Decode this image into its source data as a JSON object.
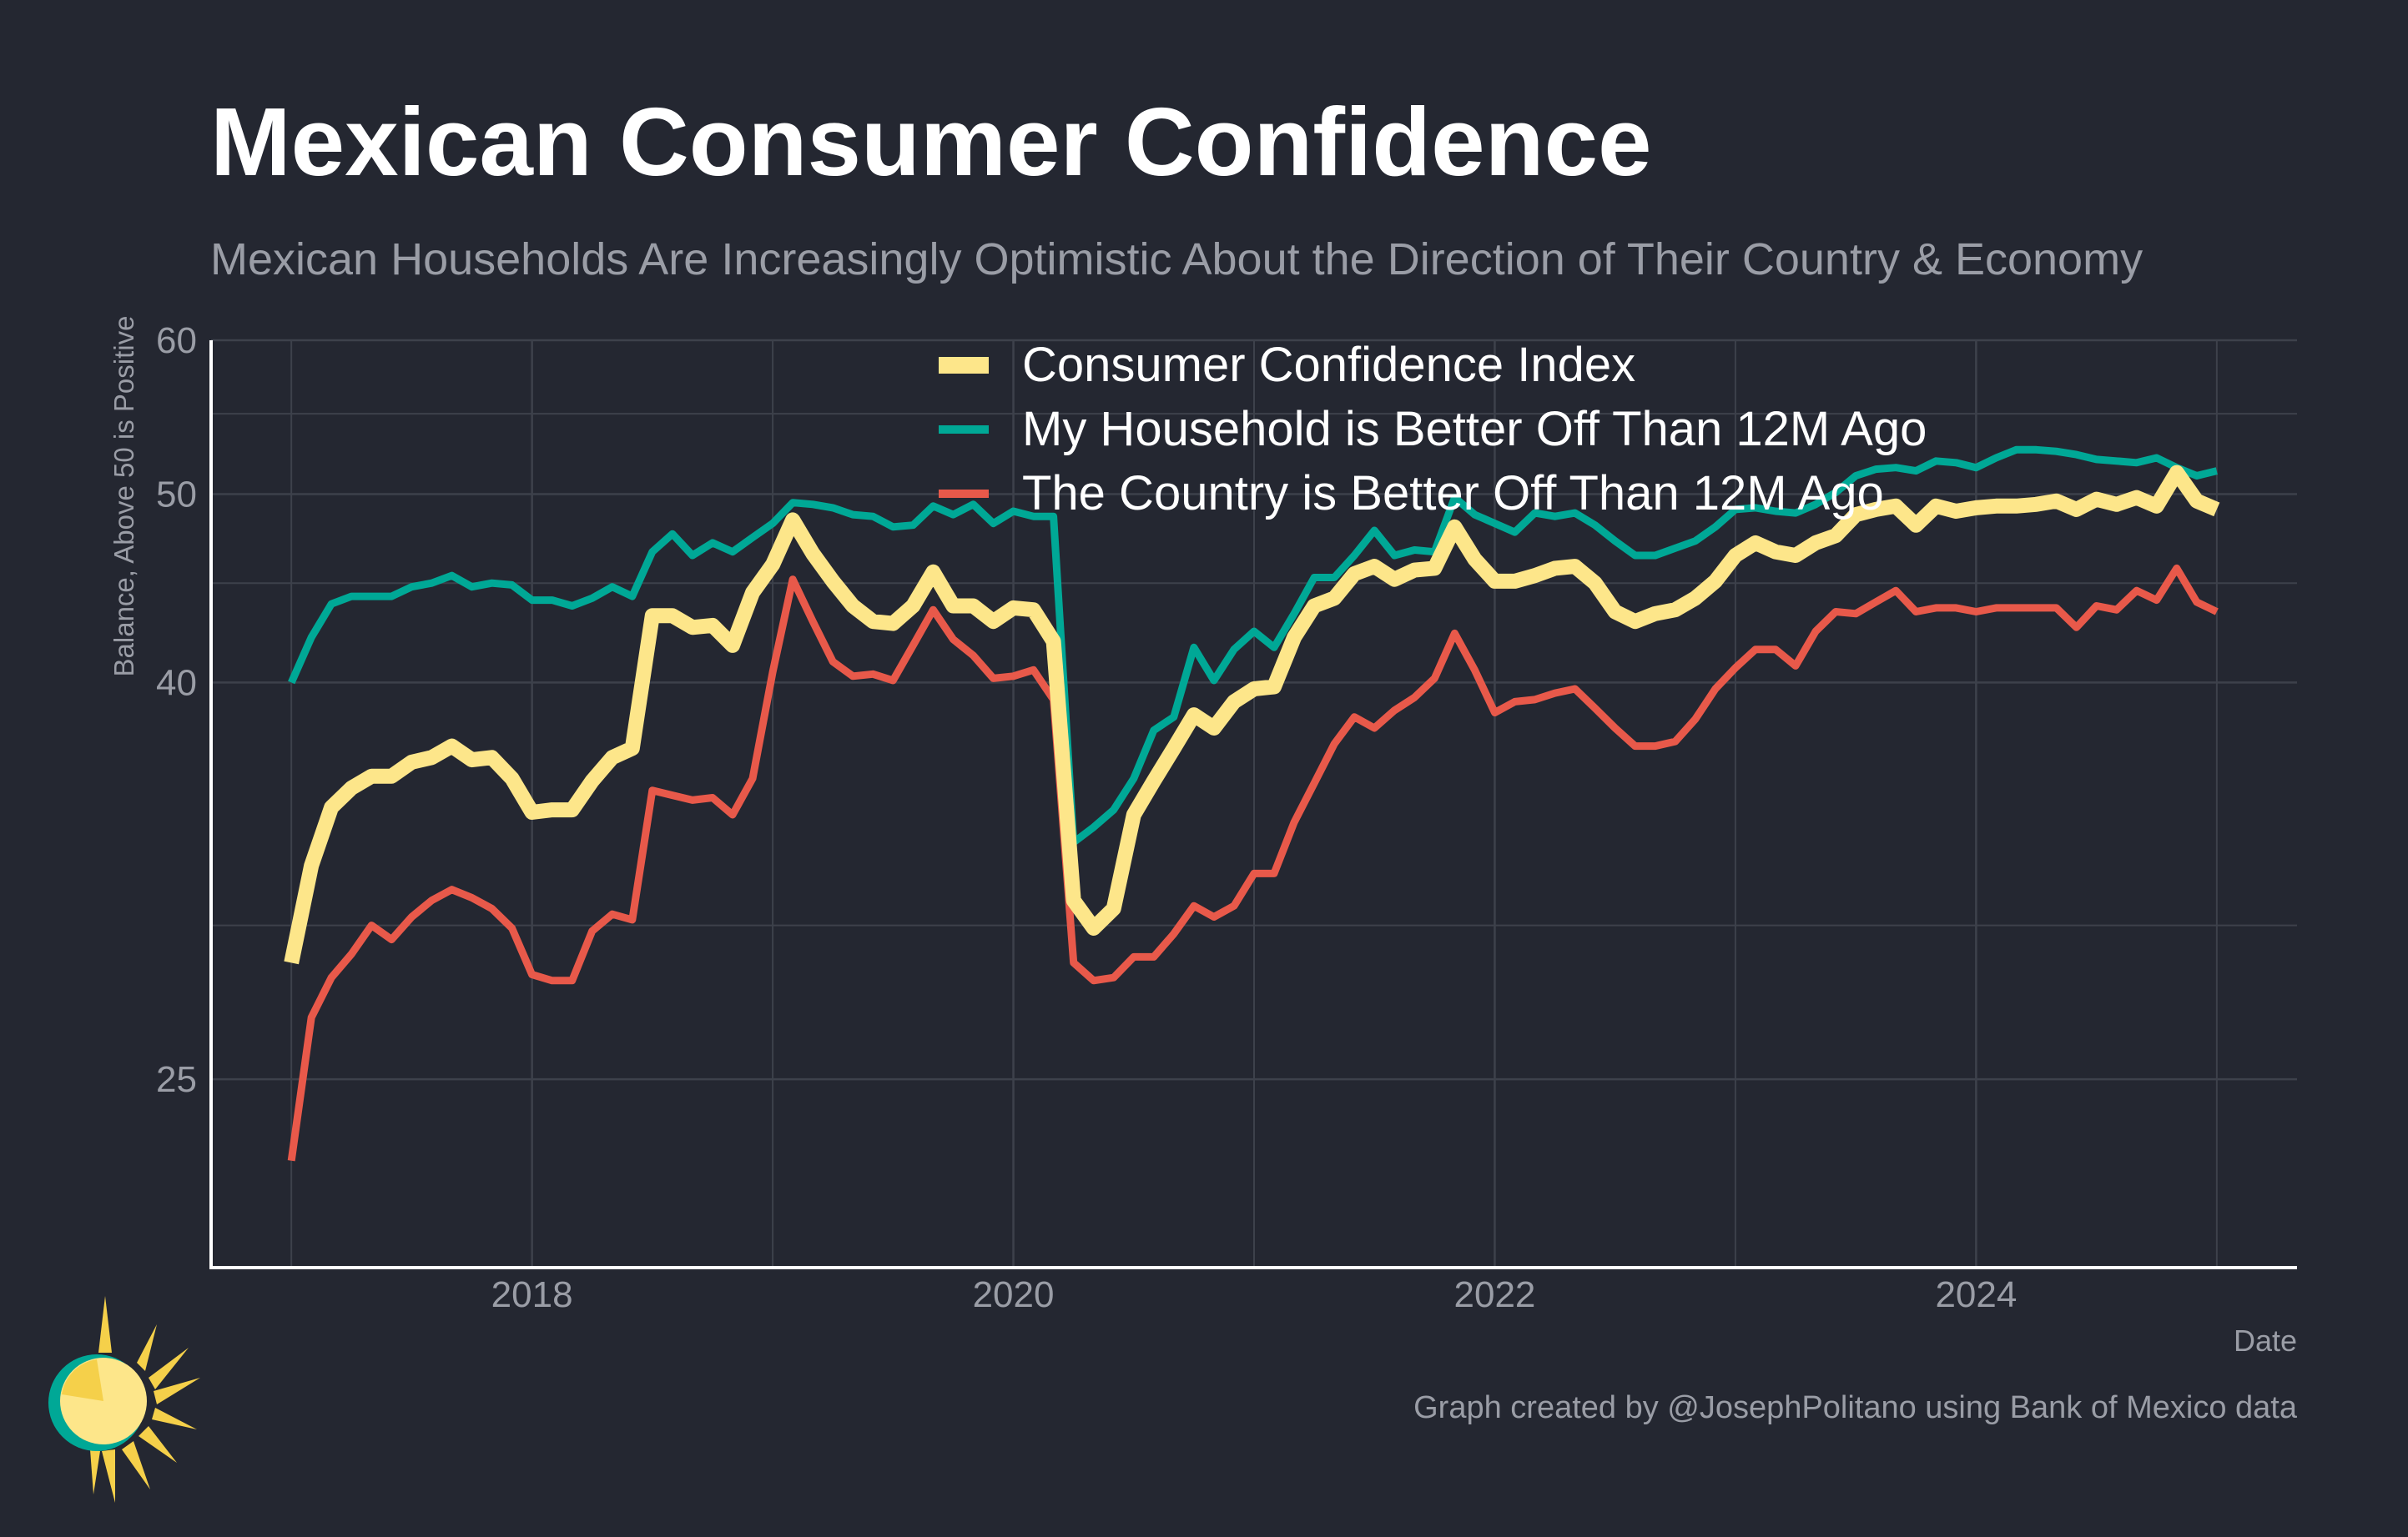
{
  "header": {
    "title": "Mexican Consumer Confidence",
    "subtitle": "Mexican Households Are Increasingly Optimistic About the Direction of Their Country & Economy"
  },
  "footer": {
    "credit": "Graph created by @JosephPolitano using Bank of Mexico data"
  },
  "logo": {
    "icon": "sun-logo-icon"
  },
  "colors": {
    "background": "#242731",
    "title": "#ffffff",
    "muted": "#9a9da6",
    "grid": "#3d414b",
    "axis": "#ffffff",
    "cci": "#fde68a",
    "household": "#00a896",
    "country": "#e8594a"
  },
  "chart_data": {
    "type": "line",
    "xlabel": "Date",
    "ylabel": "Balance, Above 50 is Positive",
    "ylim": [
      20,
      60
    ],
    "xlim": [
      "2016-09",
      "2025-05"
    ],
    "y_ticks": [
      "25",
      "40",
      "50",
      "60"
    ],
    "x_ticks": [
      "2018",
      "2020",
      "2022",
      "2024"
    ],
    "grid": true,
    "legend_position": "top-center",
    "x": [
      "2017-01",
      "2017-02",
      "2017-03",
      "2017-04",
      "2017-05",
      "2017-06",
      "2017-07",
      "2017-08",
      "2017-09",
      "2017-10",
      "2017-11",
      "2017-12",
      "2018-01",
      "2018-02",
      "2018-03",
      "2018-04",
      "2018-05",
      "2018-06",
      "2018-07",
      "2018-08",
      "2018-09",
      "2018-10",
      "2018-11",
      "2018-12",
      "2019-01",
      "2019-02",
      "2019-03",
      "2019-04",
      "2019-05",
      "2019-06",
      "2019-07",
      "2019-08",
      "2019-09",
      "2019-10",
      "2019-11",
      "2019-12",
      "2020-01",
      "2020-02",
      "2020-03",
      "2020-04",
      "2020-05",
      "2020-06",
      "2020-07",
      "2020-08",
      "2020-09",
      "2020-10",
      "2020-11",
      "2020-12",
      "2021-01",
      "2021-02",
      "2021-03",
      "2021-04",
      "2021-05",
      "2021-06",
      "2021-07",
      "2021-08",
      "2021-09",
      "2021-10",
      "2021-11",
      "2021-12",
      "2022-01",
      "2022-02",
      "2022-03",
      "2022-04",
      "2022-05",
      "2022-06",
      "2022-07",
      "2022-08",
      "2022-09",
      "2022-10",
      "2022-11",
      "2022-12",
      "2023-01",
      "2023-02",
      "2023-03",
      "2023-04",
      "2023-05",
      "2023-06",
      "2023-07",
      "2023-08",
      "2023-09",
      "2023-10",
      "2023-11",
      "2023-12",
      "2024-01",
      "2024-02",
      "2024-03",
      "2024-04",
      "2024-05",
      "2024-06",
      "2024-07",
      "2024-08",
      "2024-09",
      "2024-10",
      "2024-11",
      "2024-12",
      "2025-01"
    ],
    "series": [
      {
        "name": "Consumer Confidence Index",
        "color": "#fde68a",
        "values": [
          28.7,
          32.2,
          34.5,
          35.3,
          35.8,
          35.8,
          36.4,
          36.6,
          37.1,
          36.5,
          36.6,
          35.7,
          34.3,
          34.4,
          34.4,
          35.6,
          36.6,
          37.0,
          43.3,
          43.3,
          42.7,
          42.8,
          41.8,
          44.5,
          46.0,
          48.5,
          46.6,
          45.1,
          43.8,
          43.0,
          42.9,
          43.8,
          45.6,
          43.8,
          43.8,
          43.0,
          43.7,
          43.6,
          42.0,
          30.9,
          29.9,
          30.6,
          34.2,
          35.6,
          37.0,
          38.5,
          37.9,
          39.1,
          39.7,
          39.8,
          42.2,
          43.8,
          44.2,
          45.5,
          45.9,
          45.2,
          45.7,
          45.8,
          48.1,
          46.3,
          45.1,
          45.1,
          45.4,
          45.8,
          45.9,
          45.0,
          43.5,
          43.0,
          43.4,
          43.6,
          44.2,
          45.1,
          46.5,
          47.2,
          46.7,
          46.5,
          47.2,
          47.6,
          48.8,
          49.1,
          49.3,
          48.2,
          49.3,
          49.0,
          49.2,
          49.3,
          49.3,
          49.4,
          49.6,
          49.1,
          49.7,
          49.4,
          49.8,
          49.3,
          51.3,
          49.6,
          49.1
        ]
      },
      {
        "name": "My Household is Better Off Than 12M Ago",
        "color": "#00a896",
        "values": [
          40.0,
          42.2,
          43.9,
          44.3,
          44.3,
          44.3,
          44.8,
          45.0,
          45.4,
          44.8,
          45.0,
          44.9,
          44.1,
          44.1,
          43.8,
          44.2,
          44.8,
          44.3,
          46.7,
          47.7,
          46.5,
          47.2,
          46.7,
          47.5,
          48.3,
          49.5,
          49.4,
          49.2,
          48.8,
          48.7,
          48.1,
          48.2,
          49.3,
          48.8,
          49.4,
          48.3,
          49.0,
          48.7,
          48.7,
          33.1,
          33.7,
          34.4,
          35.7,
          37.8,
          38.4,
          41.7,
          40.1,
          41.6,
          42.5,
          41.7,
          43.4,
          45.3,
          45.3,
          46.5,
          47.9,
          46.5,
          46.8,
          46.7,
          49.8,
          48.8,
          48.3,
          47.8,
          48.9,
          48.7,
          48.9,
          48.2,
          47.3,
          46.5,
          46.5,
          46.9,
          47.3,
          48.1,
          49.1,
          49.2,
          49.0,
          48.9,
          49.4,
          50.1,
          51.1,
          51.5,
          51.6,
          51.4,
          52.0,
          51.9,
          51.6,
          52.2,
          52.7,
          52.7,
          52.6,
          52.4,
          52.1,
          52.0,
          51.9,
          52.2,
          51.6,
          51.1,
          51.4
        ]
      },
      {
        "name": "The Country is Better Off Than 12M Ago",
        "color": "#e8594a",
        "values": [
          22.7,
          26.9,
          28.2,
          29.0,
          30.0,
          29.5,
          30.3,
          30.9,
          31.3,
          31.0,
          30.6,
          29.9,
          28.3,
          28.1,
          28.1,
          29.8,
          30.4,
          30.2,
          35.2,
          35.0,
          34.8,
          34.9,
          34.2,
          35.7,
          40.5,
          45.2,
          43.0,
          41.0,
          40.3,
          40.4,
          40.1,
          41.8,
          43.6,
          42.1,
          41.3,
          40.2,
          40.3,
          40.6,
          39.2,
          28.7,
          28.1,
          28.2,
          28.9,
          28.9,
          29.7,
          30.7,
          30.3,
          30.7,
          31.9,
          31.9,
          33.9,
          35.5,
          37.2,
          38.4,
          37.9,
          38.7,
          39.3,
          40.2,
          42.4,
          40.6,
          38.6,
          39.1,
          39.2,
          39.5,
          39.7,
          38.8,
          37.9,
          37.1,
          37.1,
          37.3,
          38.3,
          39.7,
          40.7,
          41.6,
          41.6,
          40.8,
          42.5,
          43.5,
          43.4,
          44.0,
          44.6,
          43.5,
          43.7,
          43.7,
          43.5,
          43.7,
          43.7,
          43.7,
          43.7,
          42.7,
          43.8,
          43.6,
          44.6,
          44.1,
          45.8,
          44.0,
          43.5
        ]
      }
    ]
  }
}
